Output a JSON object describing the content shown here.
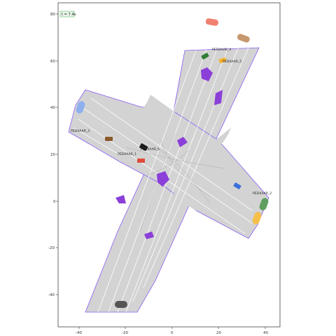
{
  "time_badge": {
    "text": "t = 7.4s"
  },
  "axes": {
    "xlim": [
      -49,
      46
    ],
    "ylim": [
      -54,
      84
    ],
    "x_ticks": [
      -40,
      -20,
      0,
      20,
      40
    ],
    "y_ticks": [
      80,
      60,
      40,
      20,
      0,
      -20,
      -40
    ]
  },
  "colors": {
    "road": "#d3d3d3",
    "road_edge": "#8a5cf6",
    "lane_line": "#ffffff",
    "crosswalk": "#8b3fd9",
    "axes_frame": "#444444"
  },
  "agent_labels": [
    {
      "id": "ped_4",
      "text": "PEDXAAR_4"
    },
    {
      "id": "ped_5",
      "text": "PEDXAAR_5"
    },
    {
      "id": "ped_3",
      "text": "PEDXAAR_3"
    },
    {
      "id": "ped_6",
      "text": "PEDXAAR_6"
    },
    {
      "id": "ped_1",
      "text": "PEDXAAR_1"
    },
    {
      "id": "ped_2",
      "text": "PEDXAAR_2"
    }
  ],
  "vehicles": [
    {
      "id": "orange-car-top",
      "color": "#f08070"
    },
    {
      "id": "tan-car-top-right",
      "color": "#c7986d"
    },
    {
      "id": "green-car-top",
      "color": "#2e7d32"
    },
    {
      "id": "yellow-car-top",
      "color": "#f3b431"
    },
    {
      "id": "blue-car-left",
      "color": "#8fb0f0"
    },
    {
      "id": "brown-car-left",
      "color": "#8b5a2b"
    },
    {
      "id": "black-car-center",
      "color": "#1b1b1b"
    },
    {
      "id": "red-car-center",
      "color": "#e04b3a"
    },
    {
      "id": "blue-car-right",
      "color": "#3b6fdc"
    },
    {
      "id": "green-car-right",
      "color": "#5f9f5f"
    },
    {
      "id": "yellow-car-right",
      "color": "#f5c04a"
    },
    {
      "id": "gray-car-bottom",
      "color": "#555555"
    }
  ]
}
